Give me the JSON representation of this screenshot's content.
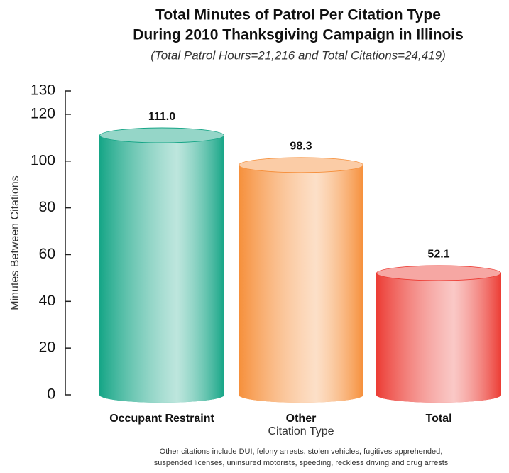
{
  "chart_data": {
    "type": "bar",
    "title": [
      "Total Minutes of Patrol Per Citation Type",
      "During 2010 Thanksgiving Campaign in Illinois"
    ],
    "subtitle": "(Total Patrol Hours=21,216 and Total Citations=24,419)",
    "categories": [
      "Occupant Restraint",
      "Other",
      "Total"
    ],
    "values": [
      111.0,
      98.3,
      52.1
    ],
    "value_labels": [
      "111.0",
      "98.3",
      "52.1"
    ],
    "colors": [
      "#15a586",
      "#f68f3a",
      "#ec3c34"
    ],
    "xlabel": "Citation Type",
    "ylabel": "Minutes Between Citations",
    "ylim": [
      0,
      130
    ],
    "yticks": [
      0,
      20,
      40,
      60,
      80,
      100,
      120,
      130
    ],
    "footnote": [
      "Other citations include DUI, felony arrests, stolen vehicles, fugitives apprehended,",
      "suspended licenses, uninsured motorists, speeding, reckless driving and drug arrests"
    ]
  }
}
